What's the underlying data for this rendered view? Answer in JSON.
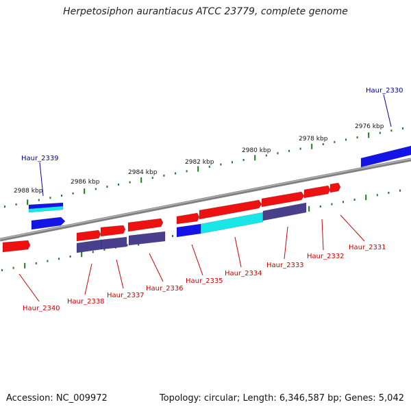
{
  "title": "Herpetosiphon aurantiacus ATCC 23779, complete genome",
  "footer": {
    "accession": "Accession: NC_009972",
    "topology": "Topology: circular; Length: 6,346,587 bp; Genes: 5,042"
  },
  "colors": {
    "backbone": "#808080",
    "tick": "#1f7a1f",
    "gene_red": "#ee1111",
    "gene_blue": "#1414e6",
    "gene_cyan": "#19e6e6",
    "gene_slate": "#4a3f8c",
    "label_red": "#cc0000",
    "label_blue": "#000099"
  },
  "scale": {
    "labels": [
      "2976 kbp",
      "2978 kbp",
      "2980 kbp",
      "2982 kbp",
      "2984 kbp",
      "2986 kbp",
      "2988 kbp"
    ]
  },
  "genes": [
    {
      "name": "Haur_2330",
      "strand": "outer",
      "highlight": true
    },
    {
      "name": "Haur_2331",
      "strand": "inner"
    },
    {
      "name": "Haur_2332",
      "strand": "inner"
    },
    {
      "name": "Haur_2333",
      "strand": "inner"
    },
    {
      "name": "Haur_2334",
      "strand": "inner"
    },
    {
      "name": "Haur_2335",
      "strand": "inner"
    },
    {
      "name": "Haur_2336",
      "strand": "inner"
    },
    {
      "name": "Haur_2337",
      "strand": "inner"
    },
    {
      "name": "Haur_2338",
      "strand": "inner"
    },
    {
      "name": "Haur_2339",
      "strand": "outer",
      "highlight": true
    },
    {
      "name": "Haur_2340",
      "strand": "inner"
    }
  ]
}
